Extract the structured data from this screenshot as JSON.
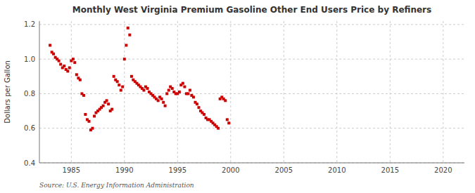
{
  "chart_data": {
    "type": "scatter",
    "title": "Monthly West Virginia Premium Gasoline Other End Users Price by Refiners",
    "ylabel": "Dollars per Gallon",
    "annotations": [
      "Source: U.S. Energy Information Administration"
    ],
    "color": "#cc0000",
    "marker": "square",
    "grid": true,
    "xlim": [
      1982,
      2022
    ],
    "ylim": [
      0.4,
      1.22
    ],
    "xticks": [
      1985,
      1990,
      1995,
      2000,
      2005,
      2010,
      2015,
      2020
    ],
    "yticks": [
      0.4,
      0.6,
      0.8,
      {
        "value": 1.0,
        "label": "1.0"
      },
      1.2
    ],
    "x": [
      1983.0,
      1983.17,
      1983.33,
      1983.5,
      1983.67,
      1983.83,
      1984.0,
      1984.17,
      1984.33,
      1984.5,
      1984.67,
      1984.83,
      1985.0,
      1985.17,
      1985.33,
      1985.5,
      1985.67,
      1985.83,
      1986.0,
      1986.17,
      1986.33,
      1986.5,
      1986.67,
      1986.83,
      1987.0,
      1987.17,
      1987.33,
      1987.5,
      1987.67,
      1987.83,
      1988.0,
      1988.17,
      1988.33,
      1988.5,
      1988.67,
      1988.83,
      1989.0,
      1989.17,
      1989.33,
      1989.5,
      1989.67,
      1989.83,
      1990.0,
      1990.17,
      1990.33,
      1990.5,
      1990.67,
      1990.83,
      1991.0,
      1991.17,
      1991.33,
      1991.5,
      1991.67,
      1991.83,
      1992.0,
      1992.17,
      1992.33,
      1992.5,
      1992.67,
      1992.83,
      1993.0,
      1993.17,
      1993.33,
      1993.5,
      1993.67,
      1993.83,
      1994.0,
      1994.17,
      1994.33,
      1994.5,
      1994.67,
      1994.83,
      1995.0,
      1995.17,
      1995.33,
      1995.5,
      1995.67,
      1995.83,
      1996.0,
      1996.17,
      1996.33,
      1996.5,
      1996.67,
      1996.83,
      1997.0,
      1997.17,
      1997.33,
      1997.5,
      1997.67,
      1997.83,
      1998.0,
      1998.17,
      1998.33,
      1998.5,
      1998.67,
      1998.83,
      1999.0,
      1999.17,
      1999.33,
      1999.5,
      1999.67,
      1999.83
    ],
    "values": [
      1.08,
      1.04,
      1.03,
      1.01,
      1.0,
      0.99,
      0.97,
      0.95,
      0.96,
      0.94,
      0.93,
      0.95,
      0.99,
      1.0,
      0.98,
      0.91,
      0.89,
      0.88,
      0.8,
      0.79,
      0.68,
      0.65,
      0.64,
      0.59,
      0.6,
      0.67,
      0.69,
      0.7,
      0.71,
      0.72,
      0.73,
      0.75,
      0.76,
      0.74,
      0.7,
      0.71,
      0.9,
      0.88,
      0.87,
      0.85,
      0.82,
      0.84,
      1.0,
      1.08,
      1.18,
      1.14,
      0.9,
      0.88,
      0.87,
      0.86,
      0.85,
      0.84,
      0.83,
      0.82,
      0.84,
      0.83,
      0.81,
      0.8,
      0.79,
      0.78,
      0.77,
      0.76,
      0.78,
      0.77,
      0.75,
      0.73,
      0.8,
      0.82,
      0.84,
      0.83,
      0.81,
      0.8,
      0.8,
      0.81,
      0.85,
      0.86,
      0.84,
      0.8,
      0.8,
      0.82,
      0.79,
      0.78,
      0.75,
      0.74,
      0.72,
      0.7,
      0.69,
      0.68,
      0.66,
      0.65,
      0.65,
      0.64,
      0.63,
      0.62,
      0.61,
      0.6,
      0.77,
      0.78,
      0.77,
      0.76,
      0.65,
      0.63
    ]
  }
}
